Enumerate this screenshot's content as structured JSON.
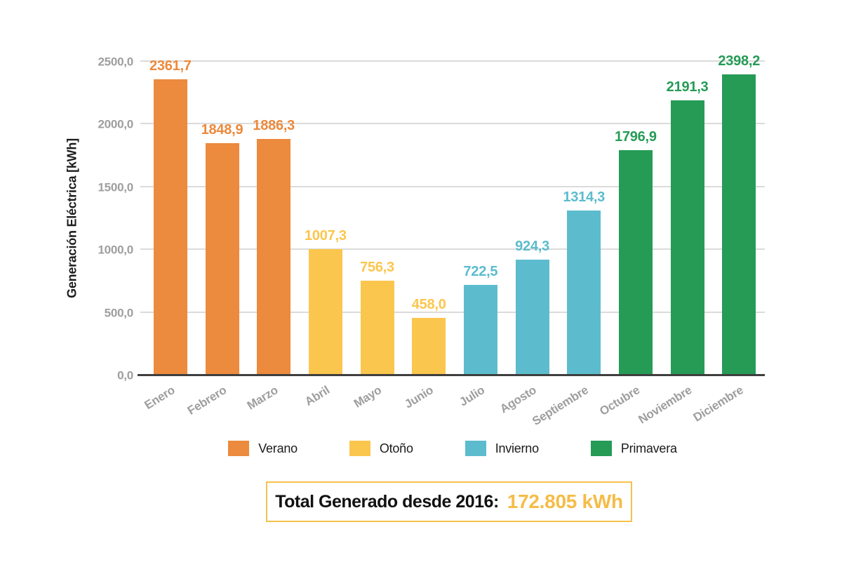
{
  "chart_data": {
    "type": "bar",
    "title": "",
    "xlabel": "",
    "ylabel": "Generación Eléctrica [kWh]",
    "ylim": [
      0,
      2500
    ],
    "ytick_step": 500,
    "yticks": [
      {
        "value": 0,
        "label": "0,0"
      },
      {
        "value": 500,
        "label": "500,0"
      },
      {
        "value": 1000,
        "label": "1000,0"
      },
      {
        "value": 1500,
        "label": "1500,0"
      },
      {
        "value": 2000,
        "label": "2000,0"
      },
      {
        "value": 2500,
        "label": "2500,0"
      }
    ],
    "grid": true,
    "legend_position": "bottom",
    "categories": [
      "Enero",
      "Febrero",
      "Marzo",
      "Abril",
      "Mayo",
      "Junio",
      "Julio",
      "Agosto",
      "Septiembre",
      "Octubre",
      "Noviembre",
      "Diciembre"
    ],
    "values": [
      2361.7,
      1848.9,
      1886.3,
      1007.3,
      756.3,
      458.0,
      722.5,
      924.3,
      1314.3,
      1796.9,
      2191.3,
      2398.2
    ],
    "value_labels": [
      "2361,7",
      "1848,9",
      "1886,3",
      "1007,3",
      "756,3",
      "458,0",
      "722,5",
      "924,3",
      "1314,3",
      "1796,9",
      "2191,3",
      "2398,2"
    ],
    "bar_groups": [
      "Verano",
      "Verano",
      "Verano",
      "Otoño",
      "Otoño",
      "Otoño",
      "Invierno",
      "Invierno",
      "Invierno",
      "Primavera",
      "Primavera",
      "Primavera"
    ],
    "legend": [
      {
        "label": "Verano",
        "color": "#ec8a3d"
      },
      {
        "label": "Otoño",
        "color": "#fbc64d"
      },
      {
        "label": "Invierno",
        "color": "#5cbcce"
      },
      {
        "label": "Primavera",
        "color": "#259b56"
      }
    ]
  },
  "total": {
    "label": "Total Generado desde 2016:",
    "value": "172.805 kWh"
  },
  "colors": {
    "axis_text": "#9e9e9e",
    "axis_title": "#1c1c1c",
    "gridline": "#dbdbdb",
    "baseline": "#3f3f3f",
    "total_border": "#f6c14c",
    "total_value_text": "#f5bc47",
    "background": "#ffffff"
  }
}
